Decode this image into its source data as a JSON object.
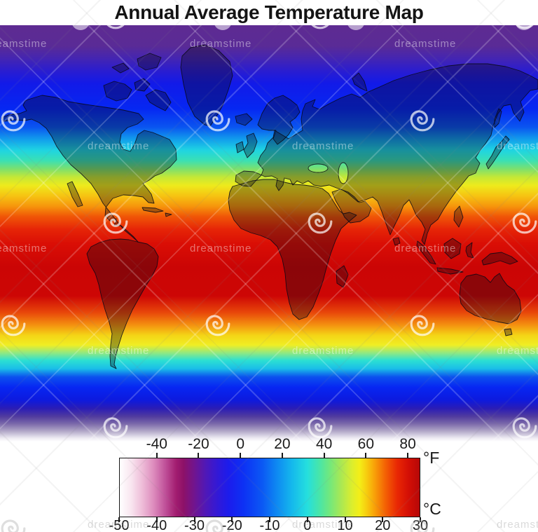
{
  "title": "Annual Average Temperature Map",
  "watermark": {
    "text": "dreamstime"
  },
  "legend": {
    "unit_top": "°F",
    "unit_bottom": "°C",
    "fahrenheit_ticks": [
      -40,
      -20,
      0,
      20,
      40,
      60,
      80
    ],
    "celsius_ticks": [
      -50,
      -40,
      -30,
      -20,
      -10,
      0,
      10,
      20,
      30
    ]
  },
  "chart_data": {
    "type": "heatmap",
    "title": "Annual Average Temperature Map",
    "description": "World map, equirectangular view; annual average temperature shown as latitudinal color bands from cold (white/purple/blue) at the poles to hot (dark red) at the equator.",
    "colorbar": {
      "orientation": "horizontal",
      "range_c": [
        -50,
        30
      ],
      "top_axis": {
        "unit": "°F",
        "ticks": [
          -40,
          -20,
          0,
          20,
          40,
          60,
          80
        ]
      },
      "bottom_axis": {
        "unit": "°C",
        "ticks": [
          -50,
          -40,
          -30,
          -20,
          -10,
          0,
          10,
          20,
          30
        ]
      },
      "stops": [
        {
          "c": -50,
          "color": "#ffffff"
        },
        {
          "c": -47,
          "color": "#f9e6f0"
        },
        {
          "c": -44,
          "color": "#eebcd8"
        },
        {
          "c": -41,
          "color": "#dd8cbd"
        },
        {
          "c": -38,
          "color": "#c1539b"
        },
        {
          "c": -35,
          "color": "#a21d70"
        },
        {
          "c": -33,
          "color": "#8d1168"
        },
        {
          "c": -30,
          "color": "#6f1590"
        },
        {
          "c": -27,
          "color": "#4f18b8"
        },
        {
          "c": -24,
          "color": "#3319d6"
        },
        {
          "c": -21,
          "color": "#1c1cec"
        },
        {
          "c": -17,
          "color": "#0d31f4"
        },
        {
          "c": -12,
          "color": "#0b58f4"
        },
        {
          "c": -8,
          "color": "#0e8af2"
        },
        {
          "c": -4,
          "color": "#15b9ec"
        },
        {
          "c": 0,
          "color": "#25dfde"
        },
        {
          "c": 3,
          "color": "#45e5ad"
        },
        {
          "c": 6,
          "color": "#72e87d"
        },
        {
          "c": 9,
          "color": "#a9e854"
        },
        {
          "c": 12,
          "color": "#dcee2d"
        },
        {
          "c": 14,
          "color": "#f4ee17"
        },
        {
          "c": 16,
          "color": "#f7ca0e"
        },
        {
          "c": 18,
          "color": "#f8a008"
        },
        {
          "c": 21,
          "color": "#f35f04"
        },
        {
          "c": 24,
          "color": "#e92804"
        },
        {
          "c": 27,
          "color": "#d40f05"
        },
        {
          "c": 30,
          "color": "#b60808"
        }
      ]
    },
    "map_bands": [
      {
        "pos": 0,
        "color": "#5e2b92"
      },
      {
        "pos": 5,
        "color": "#5a2b96"
      },
      {
        "pos": 8,
        "color": "#4425b2"
      },
      {
        "pos": 11,
        "color": "#2a1dd0"
      },
      {
        "pos": 14,
        "color": "#121ae8"
      },
      {
        "pos": 20,
        "color": "#0627f2"
      },
      {
        "pos": 24.5,
        "color": "#0a55f0"
      },
      {
        "pos": 27.5,
        "color": "#12a0ec"
      },
      {
        "pos": 30,
        "color": "#1fd4e2"
      },
      {
        "pos": 32.5,
        "color": "#3ae0b4"
      },
      {
        "pos": 34.5,
        "color": "#7ce06e"
      },
      {
        "pos": 36.5,
        "color": "#c5e836"
      },
      {
        "pos": 38.5,
        "color": "#eeea1c"
      },
      {
        "pos": 41,
        "color": "#f6c312"
      },
      {
        "pos": 43.5,
        "color": "#f6950c"
      },
      {
        "pos": 46,
        "color": "#f05507"
      },
      {
        "pos": 49,
        "color": "#e62507"
      },
      {
        "pos": 52.5,
        "color": "#da0e05"
      },
      {
        "pos": 58,
        "color": "#cb0505"
      },
      {
        "pos": 65,
        "color": "#cd0605"
      },
      {
        "pos": 69,
        "color": "#e8470a"
      },
      {
        "pos": 72,
        "color": "#f49110"
      },
      {
        "pos": 74.5,
        "color": "#f4d516"
      },
      {
        "pos": 76.8,
        "color": "#f0ee24"
      },
      {
        "pos": 78.8,
        "color": "#8ce886"
      },
      {
        "pos": 80.5,
        "color": "#2ce0d2"
      },
      {
        "pos": 82.5,
        "color": "#1abee8"
      },
      {
        "pos": 84.5,
        "color": "#0c50ee"
      },
      {
        "pos": 87,
        "color": "#0726f2"
      },
      {
        "pos": 90,
        "color": "#0d1ade"
      },
      {
        "pos": 92,
        "color": "#2a1cb6"
      },
      {
        "pos": 94,
        "color": "#513c9e"
      },
      {
        "pos": 95.7,
        "color": "#7a68aa"
      },
      {
        "pos": 97.5,
        "color": "#b2a8c8"
      },
      {
        "pos": 99.2,
        "color": "#efecf4"
      },
      {
        "pos": 100,
        "color": "#ffffff"
      }
    ]
  }
}
